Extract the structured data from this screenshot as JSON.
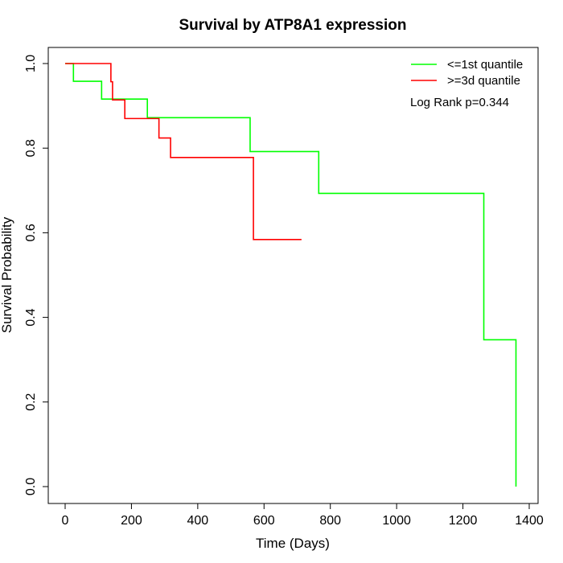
{
  "chart_data": {
    "type": "line",
    "title": "Survival by ATP8A1 expression",
    "xlabel": "Time (Days)",
    "ylabel": "Survival Probability",
    "xlim": [
      0,
      1400
    ],
    "ylim": [
      0,
      1
    ],
    "xticks": [
      0,
      200,
      400,
      600,
      800,
      1000,
      1200,
      1400
    ],
    "yticks": [
      0.0,
      0.2,
      0.4,
      0.6,
      0.8,
      1.0
    ],
    "xtick_labels": [
      "0",
      "200",
      "400",
      "600",
      "800",
      "1000",
      "1200",
      "1400"
    ],
    "ytick_labels": [
      "0.0",
      "0.2",
      "0.4",
      "0.6",
      "0.8",
      "1.0"
    ],
    "legend_position": "top-right",
    "annotation": "Log Rank p=0.344",
    "series": [
      {
        "name": "<=1st quantile",
        "color": "#00ff00",
        "step": true,
        "x": [
          0,
          25,
          110,
          248,
          558,
          765,
          1263,
          1360
        ],
        "y": [
          1.0,
          0.958,
          0.916,
          0.872,
          0.792,
          0.693,
          0.347,
          0.0
        ]
      },
      {
        "name": ">=3d quantile",
        "color": "#ff0000",
        "step": true,
        "x": [
          0,
          138,
          143,
          180,
          283,
          318,
          568,
          713
        ],
        "y": [
          1.0,
          0.957,
          0.914,
          0.87,
          0.824,
          0.778,
          0.584,
          0.584
        ]
      }
    ]
  }
}
